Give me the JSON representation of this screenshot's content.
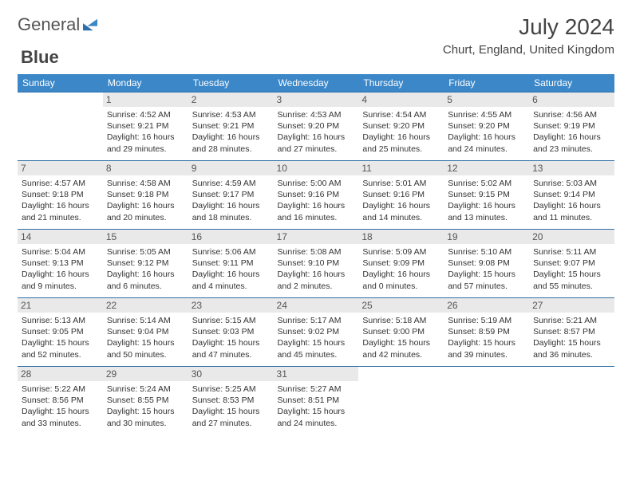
{
  "brand": {
    "part1": "General",
    "part2": "Blue"
  },
  "header": {
    "month_title": "July 2024",
    "location": "Churt, England, United Kingdom"
  },
  "colors": {
    "header_bg": "#3b87c8",
    "row_border": "#2f6fa8",
    "daynum_bg": "#e9e9e9"
  },
  "weekdays": [
    "Sunday",
    "Monday",
    "Tuesday",
    "Wednesday",
    "Thursday",
    "Friday",
    "Saturday"
  ],
  "weeks": [
    [
      null,
      {
        "n": "1",
        "sr": "Sunrise: 4:52 AM",
        "ss": "Sunset: 9:21 PM",
        "d1": "Daylight: 16 hours",
        "d2": "and 29 minutes."
      },
      {
        "n": "2",
        "sr": "Sunrise: 4:53 AM",
        "ss": "Sunset: 9:21 PM",
        "d1": "Daylight: 16 hours",
        "d2": "and 28 minutes."
      },
      {
        "n": "3",
        "sr": "Sunrise: 4:53 AM",
        "ss": "Sunset: 9:20 PM",
        "d1": "Daylight: 16 hours",
        "d2": "and 27 minutes."
      },
      {
        "n": "4",
        "sr": "Sunrise: 4:54 AM",
        "ss": "Sunset: 9:20 PM",
        "d1": "Daylight: 16 hours",
        "d2": "and 25 minutes."
      },
      {
        "n": "5",
        "sr": "Sunrise: 4:55 AM",
        "ss": "Sunset: 9:20 PM",
        "d1": "Daylight: 16 hours",
        "d2": "and 24 minutes."
      },
      {
        "n": "6",
        "sr": "Sunrise: 4:56 AM",
        "ss": "Sunset: 9:19 PM",
        "d1": "Daylight: 16 hours",
        "d2": "and 23 minutes."
      }
    ],
    [
      {
        "n": "7",
        "sr": "Sunrise: 4:57 AM",
        "ss": "Sunset: 9:18 PM",
        "d1": "Daylight: 16 hours",
        "d2": "and 21 minutes."
      },
      {
        "n": "8",
        "sr": "Sunrise: 4:58 AM",
        "ss": "Sunset: 9:18 PM",
        "d1": "Daylight: 16 hours",
        "d2": "and 20 minutes."
      },
      {
        "n": "9",
        "sr": "Sunrise: 4:59 AM",
        "ss": "Sunset: 9:17 PM",
        "d1": "Daylight: 16 hours",
        "d2": "and 18 minutes."
      },
      {
        "n": "10",
        "sr": "Sunrise: 5:00 AM",
        "ss": "Sunset: 9:16 PM",
        "d1": "Daylight: 16 hours",
        "d2": "and 16 minutes."
      },
      {
        "n": "11",
        "sr": "Sunrise: 5:01 AM",
        "ss": "Sunset: 9:16 PM",
        "d1": "Daylight: 16 hours",
        "d2": "and 14 minutes."
      },
      {
        "n": "12",
        "sr": "Sunrise: 5:02 AM",
        "ss": "Sunset: 9:15 PM",
        "d1": "Daylight: 16 hours",
        "d2": "and 13 minutes."
      },
      {
        "n": "13",
        "sr": "Sunrise: 5:03 AM",
        "ss": "Sunset: 9:14 PM",
        "d1": "Daylight: 16 hours",
        "d2": "and 11 minutes."
      }
    ],
    [
      {
        "n": "14",
        "sr": "Sunrise: 5:04 AM",
        "ss": "Sunset: 9:13 PM",
        "d1": "Daylight: 16 hours",
        "d2": "and 9 minutes."
      },
      {
        "n": "15",
        "sr": "Sunrise: 5:05 AM",
        "ss": "Sunset: 9:12 PM",
        "d1": "Daylight: 16 hours",
        "d2": "and 6 minutes."
      },
      {
        "n": "16",
        "sr": "Sunrise: 5:06 AM",
        "ss": "Sunset: 9:11 PM",
        "d1": "Daylight: 16 hours",
        "d2": "and 4 minutes."
      },
      {
        "n": "17",
        "sr": "Sunrise: 5:08 AM",
        "ss": "Sunset: 9:10 PM",
        "d1": "Daylight: 16 hours",
        "d2": "and 2 minutes."
      },
      {
        "n": "18",
        "sr": "Sunrise: 5:09 AM",
        "ss": "Sunset: 9:09 PM",
        "d1": "Daylight: 16 hours",
        "d2": "and 0 minutes."
      },
      {
        "n": "19",
        "sr": "Sunrise: 5:10 AM",
        "ss": "Sunset: 9:08 PM",
        "d1": "Daylight: 15 hours",
        "d2": "and 57 minutes."
      },
      {
        "n": "20",
        "sr": "Sunrise: 5:11 AM",
        "ss": "Sunset: 9:07 PM",
        "d1": "Daylight: 15 hours",
        "d2": "and 55 minutes."
      }
    ],
    [
      {
        "n": "21",
        "sr": "Sunrise: 5:13 AM",
        "ss": "Sunset: 9:05 PM",
        "d1": "Daylight: 15 hours",
        "d2": "and 52 minutes."
      },
      {
        "n": "22",
        "sr": "Sunrise: 5:14 AM",
        "ss": "Sunset: 9:04 PM",
        "d1": "Daylight: 15 hours",
        "d2": "and 50 minutes."
      },
      {
        "n": "23",
        "sr": "Sunrise: 5:15 AM",
        "ss": "Sunset: 9:03 PM",
        "d1": "Daylight: 15 hours",
        "d2": "and 47 minutes."
      },
      {
        "n": "24",
        "sr": "Sunrise: 5:17 AM",
        "ss": "Sunset: 9:02 PM",
        "d1": "Daylight: 15 hours",
        "d2": "and 45 minutes."
      },
      {
        "n": "25",
        "sr": "Sunrise: 5:18 AM",
        "ss": "Sunset: 9:00 PM",
        "d1": "Daylight: 15 hours",
        "d2": "and 42 minutes."
      },
      {
        "n": "26",
        "sr": "Sunrise: 5:19 AM",
        "ss": "Sunset: 8:59 PM",
        "d1": "Daylight: 15 hours",
        "d2": "and 39 minutes."
      },
      {
        "n": "27",
        "sr": "Sunrise: 5:21 AM",
        "ss": "Sunset: 8:57 PM",
        "d1": "Daylight: 15 hours",
        "d2": "and 36 minutes."
      }
    ],
    [
      {
        "n": "28",
        "sr": "Sunrise: 5:22 AM",
        "ss": "Sunset: 8:56 PM",
        "d1": "Daylight: 15 hours",
        "d2": "and 33 minutes."
      },
      {
        "n": "29",
        "sr": "Sunrise: 5:24 AM",
        "ss": "Sunset: 8:55 PM",
        "d1": "Daylight: 15 hours",
        "d2": "and 30 minutes."
      },
      {
        "n": "30",
        "sr": "Sunrise: 5:25 AM",
        "ss": "Sunset: 8:53 PM",
        "d1": "Daylight: 15 hours",
        "d2": "and 27 minutes."
      },
      {
        "n": "31",
        "sr": "Sunrise: 5:27 AM",
        "ss": "Sunset: 8:51 PM",
        "d1": "Daylight: 15 hours",
        "d2": "and 24 minutes."
      },
      null,
      null,
      null
    ]
  ]
}
